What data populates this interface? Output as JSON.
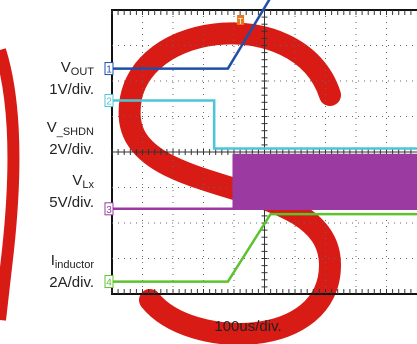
{
  "chart_data": {
    "type": "line",
    "time_per_div": "100us/div.",
    "trigger_marker": "T",
    "channels": [
      {
        "marker": "1",
        "name_main": "V",
        "name_sub": "OUT",
        "scale": "1V/div.",
        "color": "#1f4fa8",
        "x": [
          0,
          3.8,
          5.2,
          10
        ],
        "y": [
          6.35,
          6.35,
          8.35,
          8.35
        ]
      },
      {
        "marker": "2",
        "name_main": "V",
        "name_sub": "_SHDN",
        "scale": "2V/div.",
        "color": "#4cc6d6",
        "x": [
          0,
          3.35,
          3.35,
          10
        ],
        "y": [
          5.45,
          5.45,
          4.1,
          4.1
        ]
      },
      {
        "marker": "3",
        "name_main": "V",
        "name_sub": "Lx",
        "scale": "5V/div.",
        "color": "#9b3aa0",
        "x": [
          0,
          3.95,
          3.95,
          10
        ],
        "y": [
          2.4,
          2.4,
          2.4,
          2.4
        ],
        "burst_from": 3.95,
        "burst_top": 3.95
      },
      {
        "marker": "4",
        "name_main": "I",
        "name_sub": "inductor",
        "scale": "2A/div.",
        "color": "#5cc22e",
        "x": [
          0,
          3.8,
          5.2,
          10
        ],
        "y": [
          0.35,
          0.35,
          2.25,
          2.25
        ]
      }
    ],
    "grid": {
      "x_divisions": 10,
      "y_divisions": 8
    },
    "xlim": [
      0,
      10
    ],
    "ylim": [
      0,
      8
    ]
  },
  "colors": {
    "watermark": "#d81b14",
    "grid_frame": "#111111",
    "trigger": "#e8761a",
    "marker": "#e8761a"
  }
}
